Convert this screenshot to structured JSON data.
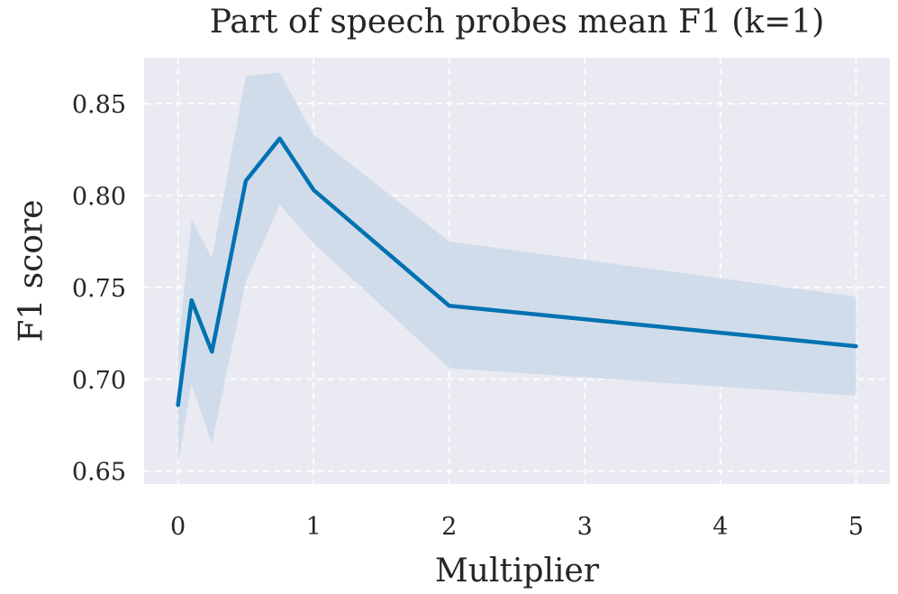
{
  "chart_data": {
    "type": "line",
    "title": "Part of speech probes mean F1 (k=1)",
    "xlabel": "Multiplier",
    "ylabel": "F1 score",
    "xlim": [
      -0.25,
      5.25
    ],
    "ylim": [
      0.643,
      0.875
    ],
    "xticks": [
      0,
      1,
      2,
      3,
      4,
      5
    ],
    "yticks": [
      0.65,
      0.7,
      0.75,
      0.8,
      0.85
    ],
    "ytick_labels": [
      "0.65",
      "0.70",
      "0.75",
      "0.80",
      "0.85"
    ],
    "grid": true,
    "series": [
      {
        "x": [
          0,
          0.1,
          0.25,
          0.5,
          0.75,
          1,
          2,
          5
        ],
        "y": [
          0.686,
          0.743,
          0.715,
          0.808,
          0.831,
          0.803,
          0.74,
          0.718
        ],
        "ci_lower": [
          0.654,
          0.697,
          0.665,
          0.753,
          0.795,
          0.774,
          0.706,
          0.691
        ],
        "ci_upper": [
          0.717,
          0.787,
          0.766,
          0.865,
          0.867,
          0.833,
          0.775,
          0.745
        ]
      }
    ],
    "colors": {
      "line": "#0072b2",
      "band": "#cdd9ea",
      "plot_bg": "#eaeaf2",
      "grid": "#ffffff"
    }
  }
}
